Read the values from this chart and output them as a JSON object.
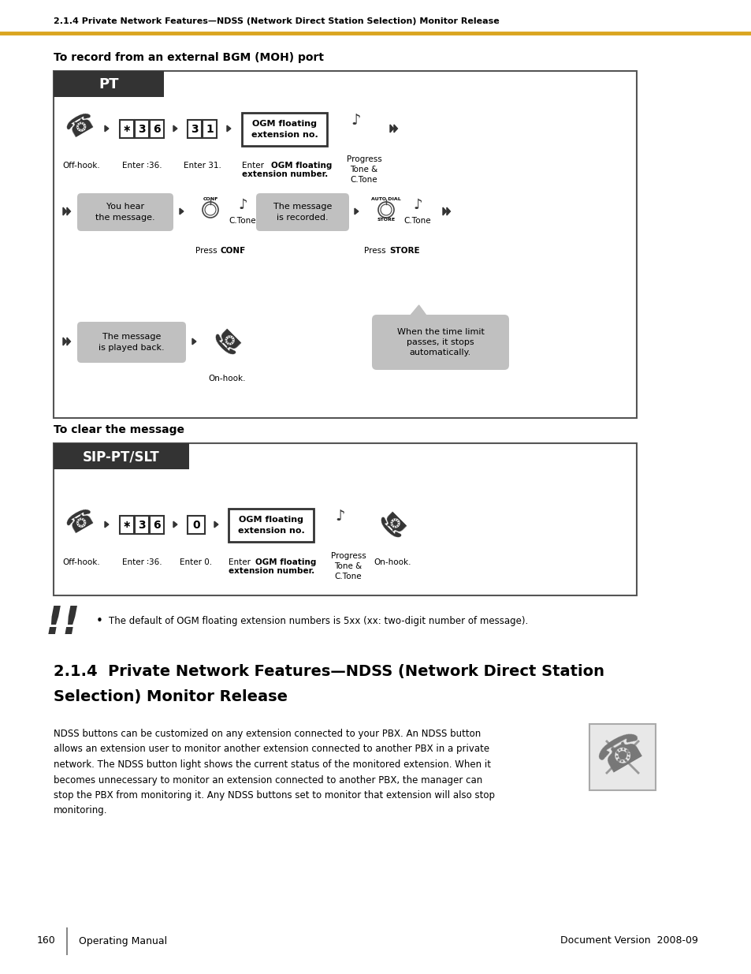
{
  "page_number": "160",
  "doc_version": "Document Version  2008-09",
  "doc_type": "Operating Manual",
  "header_text": "2.1.4 Private Network Features—NDSS (Network Direct Station Selection) Monitor Release",
  "section1_title": "To record from an external BGM (MOH) port",
  "section2_title": "To clear the message",
  "bullet_text": "The default of OGM floating extension numbers is 5xx (xx: two-digit number of message).",
  "body_text": "NDSS buttons can be customized on any extension connected to your PBX. An NDSS button\nallows an extension user to monitor another extension connected to another PBX in a private\nnetwork. The NDSS button light shows the current status of the monitored extension. When it\nbecomes unnecessary to monitor an extension connected to another PBX, the manager can\nstop the PBX from monitoring it. Any NDSS buttons set to monitor that extension will also stop\nmonitoring.",
  "main_title_line1": "2.1.4  Private Network Features—NDSS (Network Direct Station",
  "main_title_line2": "Selection) Monitor Release",
  "bg_color": "#ffffff",
  "header_line_color": "#DAA520",
  "dark_label_bg": "#333333",
  "bubble_bg": "#c0c0c0",
  "box_border": "#555555"
}
